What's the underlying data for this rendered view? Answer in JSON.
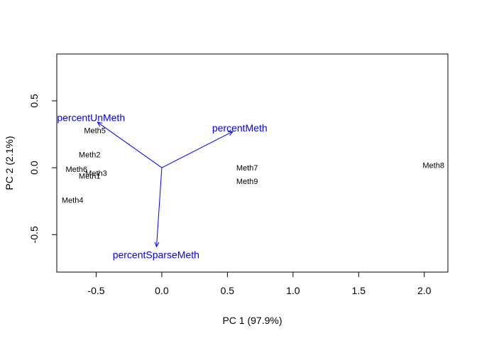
{
  "chart_data": {
    "type": "scatter",
    "subtype": "biplot",
    "title": "",
    "xlabel": "PC 1 (97.9%)",
    "ylabel": "PC 2 (2.1%)",
    "xlim": [
      -0.8,
      2.18
    ],
    "ylim": [
      -0.78,
      0.85
    ],
    "x_ticks": [
      -0.5,
      0.0,
      0.5,
      1.0,
      1.5,
      2.0
    ],
    "x_tick_labels": [
      "-0.5",
      "0.0",
      "0.5",
      "1.0",
      "1.5",
      "2.0"
    ],
    "y_ticks": [
      -0.5,
      0.0,
      0.5
    ],
    "y_tick_labels": [
      "-0.5",
      "0.0",
      "0.5"
    ],
    "grid": false,
    "legend": "none",
    "points": [
      {
        "label": "Meth1",
        "x": -0.55,
        "y": -0.06
      },
      {
        "label": "Meth2",
        "x": -0.55,
        "y": 0.1
      },
      {
        "label": "Meth3",
        "x": -0.5,
        "y": -0.04
      },
      {
        "label": "Meth4",
        "x": -0.68,
        "y": -0.24
      },
      {
        "label": "Meth5",
        "x": -0.51,
        "y": 0.28
      },
      {
        "label": "Meth6",
        "x": -0.65,
        "y": -0.01
      },
      {
        "label": "Meth7",
        "x": 0.65,
        "y": 0.0
      },
      {
        "label": "Meth8",
        "x": 2.07,
        "y": 0.02
      },
      {
        "label": "Meth9",
        "x": 0.65,
        "y": -0.1
      }
    ],
    "loadings": [
      {
        "label": "percentUnMeth",
        "x": -0.49,
        "y": 0.34
      },
      {
        "label": "percentMeth",
        "x": 0.54,
        "y": 0.27
      },
      {
        "label": "percentSparseMeth",
        "x": -0.04,
        "y": -0.59
      }
    ],
    "colors": {
      "points": "#000000",
      "loadings": "#0000ff",
      "frame": "#000000"
    }
  }
}
